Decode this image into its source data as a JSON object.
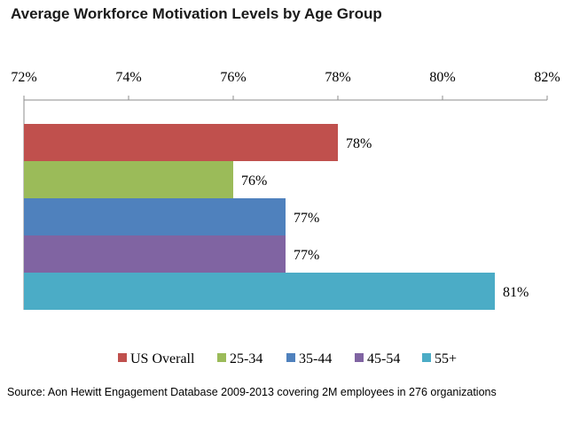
{
  "chart_data": {
    "type": "bar",
    "orientation": "horizontal",
    "title": "Average Workforce Motivation Levels by Age Group",
    "categories": [
      "US Overall",
      "25-34",
      "35-44",
      "45-54",
      "55+"
    ],
    "values": [
      78,
      76,
      77,
      77,
      81
    ],
    "value_labels": [
      "78%",
      "76%",
      "77%",
      "77%",
      "81%"
    ],
    "colors": [
      "#c0504d",
      "#9bbb59",
      "#4f81bd",
      "#8064a2",
      "#4bacc6"
    ],
    "xlim": [
      72,
      82
    ],
    "ticks": [
      72,
      74,
      76,
      78,
      80,
      82
    ],
    "tick_labels": [
      "72%",
      "74%",
      "76%",
      "78%",
      "80%",
      "82%"
    ],
    "axis_position": "top",
    "grid": false,
    "legend_position": "bottom",
    "xlabel": "",
    "ylabel": ""
  },
  "source_note": "Source: Aon Hewitt Engagement Database 2009-2013 covering 2M employees in 276 organizations"
}
